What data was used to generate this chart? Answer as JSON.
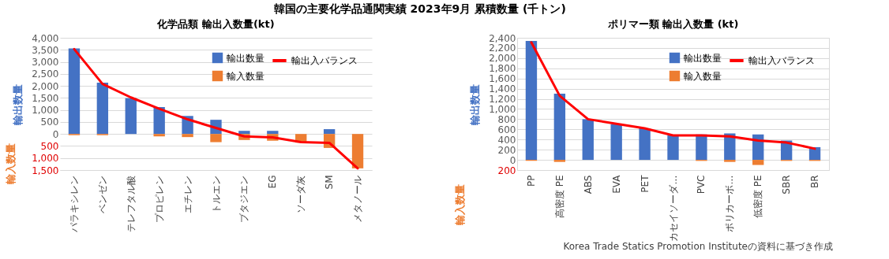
{
  "chart_data": [
    {
      "type": "bar",
      "title": "化学品類 輸出入数量(kt)",
      "ylabel": "輸出数量",
      "annotations": [
        "韓国の主要化学品通関実績 2023年9月 累積数量 (千トン)",
        "輸入数量"
      ],
      "categories": [
        "パラキシレン",
        "ベンゼン",
        "テレフタル酸",
        "プロピレン",
        "エチレン",
        "トルエン",
        "ブタジエン",
        "EG",
        "ソーダ灰",
        "SM",
        "メタノール"
      ],
      "stacked": true,
      "series": [
        {
          "name": "輸出数量",
          "color": "#4472c4",
          "values": [
            3560,
            2130,
            1490,
            1120,
            750,
            590,
            130,
            130,
            0,
            200,
            0
          ]
        },
        {
          "name": "輸入数量",
          "color": "#ed7d31",
          "values": [
            -50,
            -50,
            0,
            -100,
            -130,
            -340,
            -250,
            -280,
            -360,
            -580,
            -1430
          ]
        },
        {
          "name": "輸出入バランス",
          "type": "line",
          "color": "#ff0000",
          "values": [
            3530,
            2080,
            1520,
            1050,
            610,
            250,
            -100,
            -140,
            -340,
            -370,
            -1430
          ]
        }
      ],
      "ylim": [
        -1500,
        4000
      ],
      "yticks": [
        {
          "value": -1500,
          "label": "1,500"
        },
        {
          "value": -1000,
          "label": "1,000"
        },
        {
          "value": -500,
          "label": "500"
        },
        0,
        500,
        {
          "value": 1000,
          "label": "1,000"
        },
        {
          "value": 1500,
          "label": "1,500"
        },
        {
          "value": 2000,
          "label": "2,000"
        },
        {
          "value": 2500,
          "label": "2,500"
        },
        {
          "value": 3000,
          "label": "3,000"
        },
        {
          "value": 3500,
          "label": "3,500"
        },
        {
          "value": 4000,
          "label": "4,000"
        }
      ],
      "grid": "y",
      "legend": "top right"
    },
    {
      "type": "bar",
      "title": "ポリマー類 輸出入数量 (kt)",
      "ylabel": "輸出数量",
      "annotations": [
        "輸入数量",
        "Korea Trade Statics Promotion Instituteの資料に基づき作成"
      ],
      "categories": [
        "PP",
        "高密度 PE",
        "ABS",
        "EVA",
        "PET",
        "カセイソーダ…",
        "PVC",
        "ポリカーボ…",
        "低密度 PE",
        "SBR",
        "BR"
      ],
      "stacked": true,
      "series": [
        {
          "name": "輸出数量",
          "color": "#4472c4",
          "values": [
            2340,
            1300,
            800,
            700,
            620,
            480,
            500,
            520,
            500,
            380,
            250
          ]
        },
        {
          "name": "輸入数量",
          "color": "#ed7d31",
          "values": [
            -20,
            -40,
            0,
            0,
            0,
            0,
            -20,
            -40,
            -100,
            -20,
            -20
          ]
        },
        {
          "name": "輸出入バランス",
          "type": "line",
          "color": "#ff0000",
          "values": [
            2310,
            1260,
            800,
            710,
            620,
            480,
            480,
            460,
            380,
            340,
            220
          ]
        }
      ],
      "ylim": [
        -200,
        2400
      ],
      "yticks": [
        {
          "value": -200,
          "label": "200"
        },
        0,
        200,
        400,
        600,
        800,
        {
          "value": 1000,
          "label": "1,000"
        },
        {
          "value": 1200,
          "label": "1,200"
        },
        {
          "value": 1400,
          "label": "1,400"
        },
        {
          "value": 1600,
          "label": "1,600"
        },
        {
          "value": 1800,
          "label": "1,800"
        },
        {
          "value": 2000,
          "label": "2,000"
        },
        {
          "value": 2200,
          "label": "2,200"
        },
        {
          "value": 2400,
          "label": "2,400"
        }
      ],
      "grid": "y",
      "legend": "top right"
    }
  ]
}
